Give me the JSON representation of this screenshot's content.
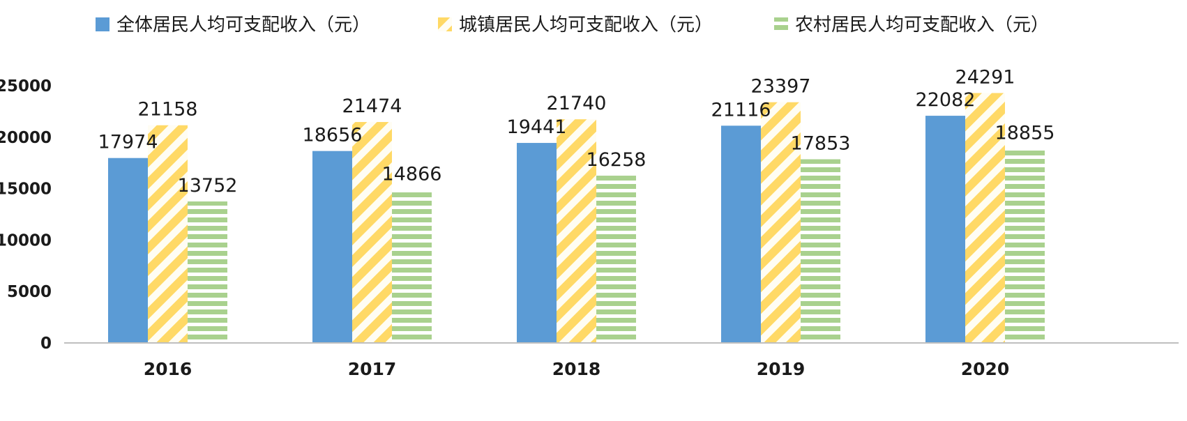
{
  "chart_data": {
    "type": "bar",
    "categories": [
      "2016",
      "2017",
      "2018",
      "2019",
      "2020"
    ],
    "series": [
      {
        "name": "全体居民人均可支配收入（元）",
        "values": [
          17974,
          18656,
          19441,
          21116,
          22082
        ],
        "color": "#5b9bd5",
        "pattern": "solid"
      },
      {
        "name": "城镇居民人均可支配收入（元）",
        "values": [
          21158,
          21474,
          21740,
          23397,
          24291
        ],
        "color": "#ffd966",
        "pattern": "diagonal-stripes"
      },
      {
        "name": "农村居民人均可支配收入（元）",
        "values": [
          13752,
          14866,
          16258,
          17853,
          18855
        ],
        "color": "#a9d18e",
        "pattern": "horizontal-stripes"
      }
    ],
    "y_ticks": [
      "0",
      "5000",
      "10000",
      "15000",
      "20000",
      "25000"
    ],
    "ylim": [
      0,
      25000
    ],
    "grid": false,
    "legend": "top",
    "axis_color": "#bfbfbf",
    "text_color": "#1a1a1a"
  }
}
